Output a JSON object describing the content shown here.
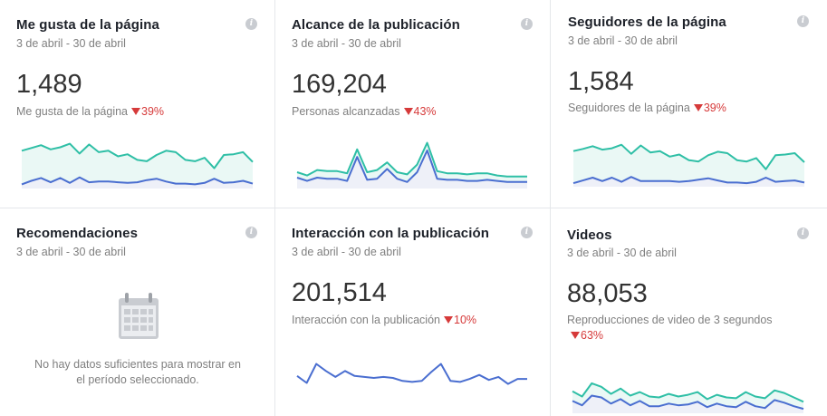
{
  "cards": [
    {
      "title": "Me gusta de la página",
      "date": "3 de abril - 30 de abril",
      "value": "1,489",
      "sublabel": "Me gusta de la página",
      "delta": "39%"
    },
    {
      "title": "Alcance de la publicación",
      "date": "3 de abril - 30 de abril",
      "value": "169,204",
      "sublabel": "Personas alcanzadas",
      "delta": "43%"
    },
    {
      "title": "Seguidores de la página",
      "date": "3 de abril - 30 de abril",
      "value": "1,584",
      "sublabel": "Seguidores de la página",
      "delta": "39%"
    },
    {
      "title": "Recomendaciones",
      "date": "3 de abril - 30 de abril",
      "empty_line1": "No hay datos suficientes para mostrar en",
      "empty_line2": "el período seleccionado."
    },
    {
      "title": "Interacción con la publicación",
      "date": "3 de abril - 30 de abril",
      "value": "201,514",
      "sublabel": "Interacción con la publicación",
      "delta": "10%"
    },
    {
      "title": "Videos",
      "date": "3 de abril - 30 de abril",
      "value": "88,053",
      "sublabel": "Reproducciones de video de 3 segundos",
      "delta": "63%"
    }
  ],
  "info_glyph": "i",
  "colors": {
    "teal": "#2fbfa6",
    "blue": "#4a6ed0",
    "fill": "#eaf8f5",
    "red": "#d63a3a"
  },
  "sparklines": {
    "likes": {
      "teal": [
        5.4,
        5.8,
        6.2,
        5.6,
        5.9,
        6.4,
        5.0,
        6.3,
        5.2,
        5.4,
        4.6,
        4.9,
        4.1,
        3.9,
        4.8,
        5.4,
        5.2,
        4.1,
        3.9,
        4.4,
        2.9,
        4.8,
        4.9,
        5.2,
        3.8
      ],
      "blue": [
        0.6,
        1.1,
        1.5,
        0.9,
        1.5,
        0.8,
        1.6,
        0.9,
        1.0,
        1.0,
        0.9,
        0.8,
        0.9,
        1.2,
        1.4,
        1.0,
        0.7,
        0.7,
        0.6,
        0.8,
        1.4,
        0.8,
        0.9,
        1.1,
        0.7
      ]
    },
    "reach": {
      "teal": [
        1.5,
        1.2,
        1.7,
        1.6,
        1.6,
        1.4,
        3.6,
        1.5,
        1.7,
        2.4,
        1.5,
        1.3,
        2.2,
        4.2,
        1.6,
        1.4,
        1.4,
        1.3,
        1.4,
        1.4,
        1.2,
        1.1,
        1.1,
        1.1
      ],
      "blue": [
        1.0,
        0.7,
        1.0,
        0.9,
        0.9,
        0.7,
        2.9,
        0.8,
        0.9,
        1.8,
        0.9,
        0.6,
        1.5,
        3.5,
        0.9,
        0.8,
        0.8,
        0.7,
        0.7,
        0.8,
        0.7,
        0.6,
        0.6,
        0.6
      ]
    },
    "followers": {
      "teal": [
        5.1,
        5.4,
        5.8,
        5.3,
        5.5,
        6.0,
        4.7,
        5.9,
        4.9,
        5.1,
        4.3,
        4.6,
        3.8,
        3.6,
        4.5,
        5.0,
        4.8,
        3.8,
        3.6,
        4.1,
        2.5,
        4.5,
        4.6,
        4.8,
        3.5
      ],
      "blue": [
        0.5,
        0.9,
        1.3,
        0.8,
        1.3,
        0.7,
        1.4,
        0.8,
        0.8,
        0.8,
        0.8,
        0.7,
        0.8,
        1.0,
        1.2,
        0.9,
        0.6,
        0.6,
        0.5,
        0.7,
        1.3,
        0.7,
        0.8,
        0.9,
        0.6
      ]
    },
    "engagement": {
      "blue": [
        2.1,
        1.4,
        3.3,
        2.6,
        2.0,
        2.6,
        2.1,
        2.0,
        1.9,
        2.0,
        1.9,
        1.6,
        1.5,
        1.6,
        2.5,
        3.3,
        1.6,
        1.5,
        1.8,
        2.2,
        1.7,
        2.0,
        1.3,
        1.8,
        1.8
      ]
    },
    "videos": {
      "teal": [
        2.5,
        1.9,
        3.4,
        3.0,
        2.2,
        2.8,
        2.0,
        2.4,
        1.9,
        1.8,
        2.2,
        1.9,
        2.1,
        2.4,
        1.6,
        2.1,
        1.8,
        1.7,
        2.4,
        1.9,
        1.7,
        2.6,
        2.3,
        1.8,
        1.3
      ],
      "blue": [
        1.4,
        0.9,
        2.0,
        1.8,
        1.1,
        1.6,
        0.9,
        1.4,
        0.8,
        0.8,
        1.1,
        0.9,
        1.0,
        1.3,
        0.7,
        1.1,
        0.8,
        0.7,
        1.3,
        0.8,
        0.6,
        1.5,
        1.2,
        0.8,
        0.5
      ]
    }
  }
}
